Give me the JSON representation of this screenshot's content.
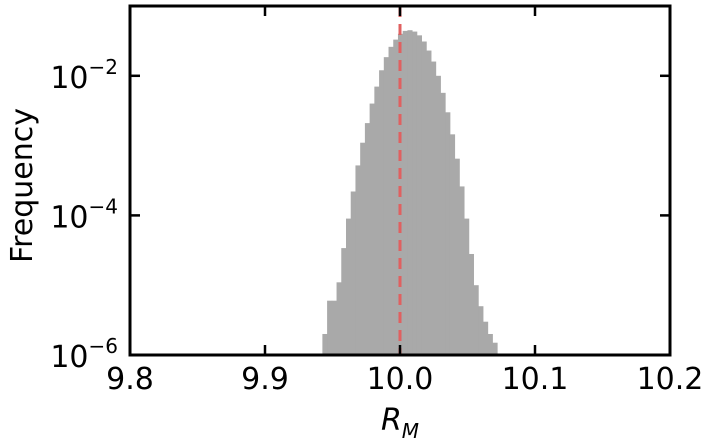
{
  "chart_data": {
    "type": "bar",
    "title": "",
    "xlabel": "R",
    "xlabel_subscript": "M",
    "ylabel": "Frequency",
    "yscale": "log",
    "xlim": [
      9.8,
      10.2
    ],
    "ylim": [
      1e-06,
      0.1
    ],
    "xticks": [
      {
        "value": 9.8,
        "label": "9.8"
      },
      {
        "value": 9.9,
        "label": "9.9"
      },
      {
        "value": 10.0,
        "label": "10.0"
      },
      {
        "value": 10.1,
        "label": "10.1"
      },
      {
        "value": 10.2,
        "label": "10.2"
      }
    ],
    "yticks": [
      {
        "value": 1e-06,
        "base": "10",
        "exp": "−6"
      },
      {
        "value": 0.0001,
        "base": "10",
        "exp": "−4"
      },
      {
        "value": 0.01,
        "base": "10",
        "exp": "−2"
      }
    ],
    "reference_line": {
      "x": 10.0,
      "style": "dashed",
      "color": "#e06060"
    },
    "bar_color": "#a9a9a9",
    "grid": false,
    "bins": {
      "x_start": [
        9.9425,
        9.946,
        9.9495,
        9.953,
        9.9565,
        9.96,
        9.9635,
        9.967,
        9.9705,
        9.974,
        9.9775,
        9.981,
        9.9845,
        9.988,
        9.9915,
        9.995,
        9.9985,
        10.002,
        10.0055,
        10.009,
        10.0125,
        10.016,
        10.0195,
        10.023,
        10.0265,
        10.03,
        10.0335,
        10.037,
        10.0405,
        10.044,
        10.0475,
        10.051,
        10.0545,
        10.058,
        10.0615,
        10.065,
        10.0685
      ],
      "width": 0.0035,
      "values": [
        2e-06,
        6e-06,
        6e-06,
        1.1e-05,
        3.4e-05,
        9e-05,
        0.00022,
        0.00052,
        0.0011,
        0.0021,
        0.004,
        0.007,
        0.012,
        0.0185,
        0.026,
        0.033,
        0.04,
        0.044,
        0.045,
        0.043,
        0.038,
        0.031,
        0.023,
        0.016,
        0.01,
        0.0057,
        0.003,
        0.00145,
        0.00065,
        0.00026,
        9e-05,
        2.8e-05,
        1e-05,
        5e-06,
        3e-06,
        2e-06,
        1.5e-06
      ]
    }
  }
}
